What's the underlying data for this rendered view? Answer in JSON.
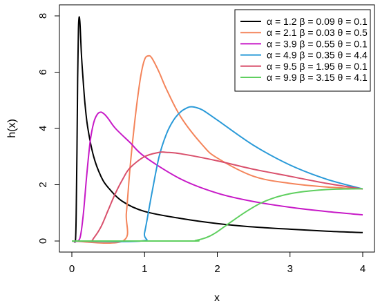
{
  "chart_data": {
    "type": "line",
    "title": "",
    "xlabel": "x",
    "ylabel": "h(x)",
    "xlim": [
      0,
      4
    ],
    "ylim": [
      0,
      8
    ],
    "x_ticks": [
      0,
      1,
      2,
      3,
      4
    ],
    "y_ticks": [
      0,
      2,
      4,
      6,
      8
    ],
    "legend_position": "top-right",
    "grid": false,
    "series": [
      {
        "name": "α = 1.2  β = 0.09  θ = 0.1",
        "color": "#000000",
        "x": [
          0.0,
          0.03,
          0.05,
          0.06,
          0.07,
          0.08,
          0.09,
          0.1,
          0.11,
          0.12,
          0.13,
          0.15,
          0.18,
          0.22,
          0.3,
          0.4,
          0.5,
          0.7,
          1.0,
          1.5,
          2.0,
          2.5,
          3.0,
          3.5,
          4.0
        ],
        "y": [
          0.0,
          0.0,
          0.05,
          1.0,
          3.2,
          5.8,
          7.5,
          7.95,
          7.8,
          7.3,
          6.7,
          5.9,
          4.9,
          4.0,
          3.0,
          2.3,
          1.9,
          1.4,
          1.05,
          0.8,
          0.62,
          0.5,
          0.42,
          0.35,
          0.3
        ]
      },
      {
        "name": "α = 2.1  β = 0.03  θ = 0.5",
        "color": "#f4845a",
        "x": [
          0.0,
          0.7,
          0.75,
          0.8,
          0.85,
          0.9,
          0.95,
          1.0,
          1.05,
          1.1,
          1.2,
          1.3,
          1.5,
          1.8,
          2.0,
          2.5,
          3.0,
          3.5,
          4.0
        ],
        "y": [
          0.0,
          0.0,
          1.0,
          2.6,
          3.9,
          5.0,
          5.9,
          6.45,
          6.58,
          6.5,
          6.0,
          5.4,
          4.4,
          3.4,
          2.95,
          2.3,
          2.05,
          1.92,
          1.85
        ]
      },
      {
        "name": "α = 3.9  β = 0.55  θ = 0.1",
        "color": "#c719c7",
        "x": [
          0.0,
          0.08,
          0.12,
          0.16,
          0.2,
          0.25,
          0.3,
          0.35,
          0.4,
          0.45,
          0.5,
          0.6,
          0.8,
          1.0,
          1.5,
          2.0,
          2.5,
          3.0,
          3.5,
          4.0
        ],
        "y": [
          0.0,
          0.0,
          0.2,
          1.0,
          2.2,
          3.5,
          4.2,
          4.5,
          4.58,
          4.5,
          4.35,
          4.0,
          3.5,
          3.0,
          2.2,
          1.7,
          1.4,
          1.2,
          1.05,
          0.93
        ]
      },
      {
        "name": "α = 4.9  β = 0.35  θ = 4.4",
        "color": "#2a9ad8",
        "x": [
          0.0,
          0.95,
          1.0,
          1.1,
          1.2,
          1.3,
          1.4,
          1.5,
          1.6,
          1.65,
          1.7,
          1.8,
          2.0,
          2.5,
          3.0,
          3.5,
          4.0
        ],
        "y": [
          0.0,
          0.0,
          0.3,
          1.7,
          3.0,
          3.8,
          4.3,
          4.6,
          4.75,
          4.77,
          4.75,
          4.65,
          4.3,
          3.4,
          2.7,
          2.2,
          1.85
        ]
      },
      {
        "name": "α = 9.5  β = 1.95  θ = 0.1",
        "color": "#d9506c",
        "x": [
          0.0,
          0.25,
          0.3,
          0.4,
          0.5,
          0.6,
          0.7,
          0.8,
          1.0,
          1.2,
          1.3,
          1.5,
          2.0,
          2.5,
          3.0,
          3.5,
          4.0
        ],
        "y": [
          0.0,
          0.0,
          0.1,
          0.5,
          1.1,
          1.7,
          2.2,
          2.6,
          3.0,
          3.15,
          3.15,
          3.1,
          2.85,
          2.55,
          2.3,
          2.05,
          1.85
        ]
      },
      {
        "name": "α = 9.9  β = 3.15  θ = 4.1",
        "color": "#5fcf5f",
        "x": [
          0.0,
          1.6,
          1.7,
          1.8,
          1.9,
          2.0,
          2.2,
          2.4,
          2.6,
          2.8,
          3.0,
          3.2,
          3.4,
          3.6,
          3.8,
          4.0
        ],
        "y": [
          0.0,
          0.0,
          0.02,
          0.08,
          0.18,
          0.33,
          0.7,
          1.05,
          1.35,
          1.55,
          1.68,
          1.76,
          1.81,
          1.84,
          1.85,
          1.86
        ]
      }
    ]
  }
}
